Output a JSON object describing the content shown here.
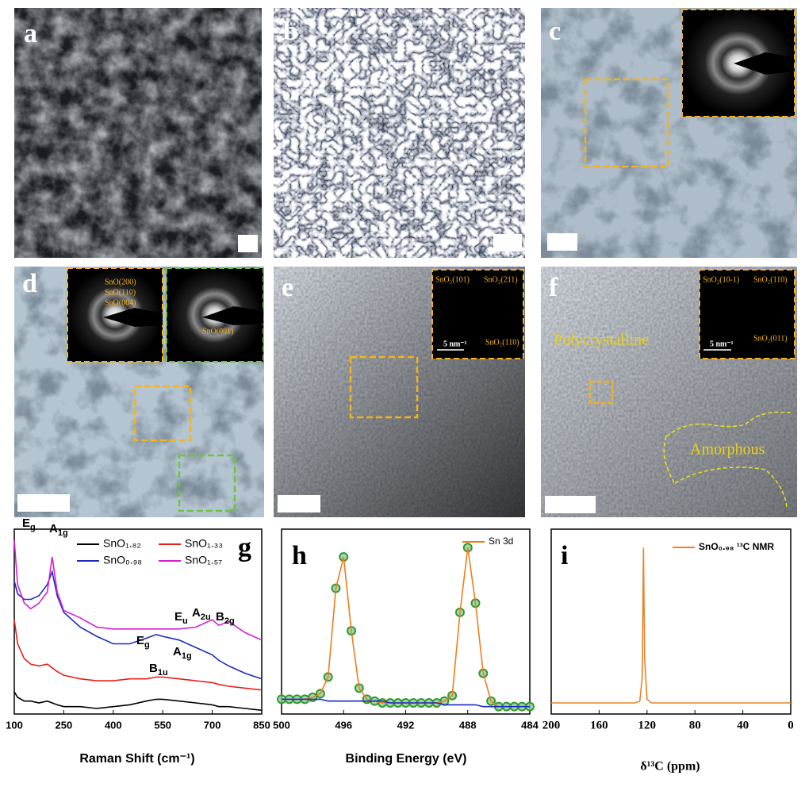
{
  "panels": [
    {
      "label": "a"
    },
    {
      "label": "b"
    },
    {
      "label": "c"
    },
    {
      "label": "d",
      "inset_labels": [
        "SnO(200)",
        "SnO(110)",
        "SnO(004)",
        "SnO(001)"
      ]
    },
    {
      "label": "e",
      "inset_labels": [
        "SnO₂(101)",
        "SnO₂(211)",
        "SnO₂(110)"
      ],
      "scale_label": "5 nm⁻¹"
    },
    {
      "label": "f",
      "inset_labels": [
        "SnO₂(10-1)",
        "SnO₂(110)",
        "SnO₂(011)"
      ],
      "scale_label": "5 nm⁻¹",
      "annotations": [
        "Polycrystalline",
        "Amorphous"
      ]
    }
  ],
  "chart_data": [
    {
      "type": "line",
      "panel_label": "g",
      "x_label": "Raman Shift (cm⁻¹)",
      "x": [
        100,
        110,
        130,
        150,
        175,
        200,
        215,
        230,
        250,
        300,
        350,
        400,
        450,
        500,
        530,
        550,
        600,
        650,
        700,
        720,
        750,
        800,
        850
      ],
      "xlim": [
        100,
        850
      ],
      "xticks": [
        100,
        250,
        400,
        550,
        700,
        850
      ],
      "ylim": [
        0,
        100
      ],
      "series": [
        {
          "name": "SnO₁.₈₂",
          "color": "#000000",
          "values": [
            12,
            9,
            7,
            7,
            6,
            7,
            6,
            5,
            4,
            4,
            3,
            4,
            5,
            7,
            8,
            8,
            7,
            6,
            5,
            4,
            4,
            3,
            2
          ]
        },
        {
          "name": "SnO₁.₃₃",
          "color": "#e8201c",
          "values": [
            51,
            38,
            30,
            27,
            26,
            27,
            25,
            23,
            21,
            19,
            18,
            18,
            19,
            19,
            20,
            20,
            19,
            18,
            17,
            16,
            15,
            14,
            13
          ]
        },
        {
          "name": "SnO₀.₉₈",
          "color": "#1c2bc4",
          "values": [
            72,
            65,
            62,
            62,
            64,
            70,
            77,
            64,
            55,
            47,
            42,
            38,
            38,
            41,
            43,
            42,
            40,
            36,
            32,
            29,
            26,
            22,
            19
          ]
        },
        {
          "name": "SnO₁.₅₇",
          "color": "#d61fd6",
          "values": [
            94,
            70,
            60,
            57,
            60,
            66,
            85,
            66,
            56,
            52,
            47,
            46,
            46,
            46,
            46,
            46,
            46,
            47,
            51,
            48,
            50,
            44,
            40
          ]
        }
      ],
      "annotations": [
        {
          "text": "E",
          "sub": "g"
        },
        {
          "text": "A",
          "sub": "1g"
        },
        {
          "text": "E",
          "sub": "u"
        },
        {
          "text": "A",
          "sub": "2u"
        },
        {
          "text": "B",
          "sub": "2g"
        },
        {
          "text": "E",
          "sub": "g"
        },
        {
          "text": "A",
          "sub": "1g"
        },
        {
          "text": "B",
          "sub": "1u"
        }
      ]
    },
    {
      "type": "line",
      "panel_label": "h",
      "x_label": "Binding Energy (eV)",
      "x": [
        500,
        499.5,
        499,
        498.5,
        498,
        497.5,
        497,
        496.5,
        496,
        495.5,
        495,
        494.5,
        494,
        493.5,
        493,
        492.5,
        492,
        491.5,
        491,
        490.5,
        490,
        489.5,
        489,
        488.5,
        488,
        487.5,
        487,
        486.5,
        486,
        485.5,
        485,
        484.5,
        484
      ],
      "xlim": [
        500,
        484
      ],
      "xticks": [
        500,
        496,
        492,
        488,
        484
      ],
      "ylim": [
        0,
        100
      ],
      "series": [
        {
          "color": "#2e9a2e",
          "marker": true,
          "values": [
            8,
            8,
            8,
            8,
            9,
            11,
            20,
            68,
            85,
            45,
            14,
            8,
            7,
            6,
            6,
            6,
            6,
            6,
            6,
            6,
            6,
            7,
            10,
            55,
            90,
            60,
            22,
            7,
            4,
            4,
            4,
            4,
            4
          ]
        },
        {
          "name": "Sn 3d",
          "color": "#f07d1c",
          "values": [
            8,
            8,
            8,
            8,
            9,
            11,
            20,
            68,
            85,
            45,
            14,
            8,
            7,
            6,
            6,
            6,
            6,
            6,
            6,
            6,
            6,
            7,
            10,
            55,
            90,
            60,
            22,
            7,
            4,
            4,
            4,
            4,
            4
          ]
        },
        {
          "color": "#1c2bc4",
          "values": [
            8,
            8,
            8,
            8,
            8,
            8,
            7,
            7,
            7,
            7,
            7,
            7,
            7,
            7,
            6,
            6,
            6,
            6,
            6,
            6,
            6,
            5,
            5,
            5,
            5,
            5,
            4,
            4,
            4,
            4,
            4,
            4,
            4
          ]
        }
      ]
    },
    {
      "type": "line",
      "panel_label": "i",
      "x_label": "δ¹³C (ppm)",
      "x": [
        200,
        150,
        130,
        126,
        124,
        123,
        122,
        120,
        116,
        100,
        50,
        0
      ],
      "xlim": [
        200,
        0
      ],
      "xticks": [
        200,
        160,
        120,
        80,
        40,
        0
      ],
      "ylim": [
        0,
        100
      ],
      "series": [
        {
          "name": "SnO₀.₉₈ ¹³C NMR",
          "color": "#e8832c",
          "values": [
            6,
            6,
            6,
            7,
            20,
            90,
            30,
            8,
            6,
            6,
            6,
            6
          ]
        }
      ]
    }
  ]
}
